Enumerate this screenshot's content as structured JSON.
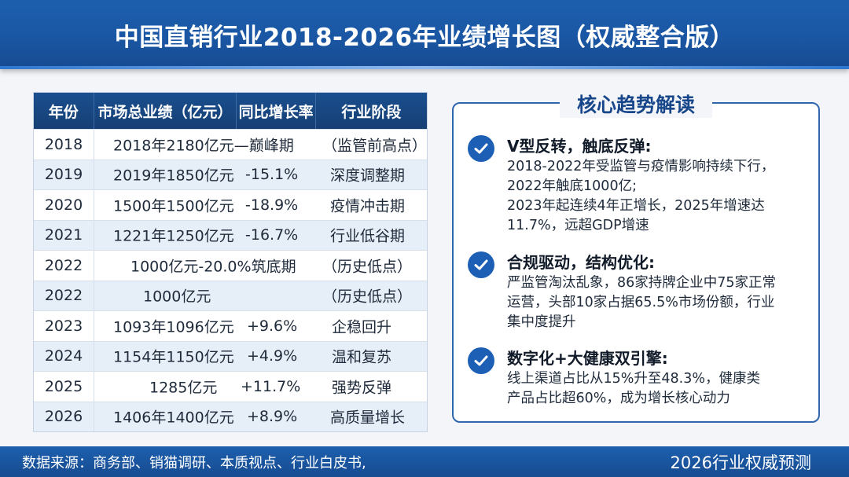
{
  "title": "中国直销行业2018-2026年业绩增长图（权威整合版）",
  "table": {
    "headers": [
      "年份",
      "市场总业绩（亿元）",
      "同比增长率",
      "行业阶段"
    ],
    "rows": [
      {
        "year": "2018",
        "segments": [
          "2018年2180亿元—巅峰期",
          "（监管前高点）"
        ]
      },
      {
        "year": "2019",
        "segments": [
          "2019年1850亿元",
          "-15.1%",
          "深度调整期"
        ]
      },
      {
        "year": "2020",
        "segments": [
          "1500年1500亿元",
          "-18.9%",
          "疫情冲击期"
        ]
      },
      {
        "year": "2021",
        "segments": [
          "1221年1250亿元",
          "-16.7%",
          "行业低谷期"
        ]
      },
      {
        "year": "2022",
        "segments": [
          "1000亿元-20.0%筑底期",
          "（历史低点）"
        ]
      },
      {
        "year": "2022",
        "segments": [
          "1000亿元",
          "（历史低点）"
        ]
      },
      {
        "year": "2023",
        "segments": [
          "1093年1096亿元",
          "+9.6%",
          "企稳回升"
        ]
      },
      {
        "year": "2024",
        "segments": [
          "1154年1150亿元",
          "+4.9%",
          "温和复苏"
        ]
      },
      {
        "year": "2025",
        "segments": [
          "1285亿元",
          "+11.7%",
          "强势反弹"
        ]
      },
      {
        "year": "2026",
        "segments": [
          "1406年1400亿元",
          "+8.9%",
          "高质量增长"
        ]
      }
    ]
  },
  "panel": {
    "title": "核心趋势解读",
    "items": [
      {
        "heading": "V型反转，触底反弹:",
        "lines": [
          "2018-2022年受监管与疫情影响持续下行，",
          "2022年触底1000亿;",
          "2023年起连续4年正增长，2025年增速达",
          "11.7%，远超GDP增速"
        ]
      },
      {
        "heading": "合规驱动，结构优化:",
        "lines": [
          "严监管淘汰乱象，86家持牌企业中75家正常",
          "运营，头部10家占据65.5%市场份额，行业",
          "集中度提升"
        ]
      },
      {
        "heading": "数字化+大健康双引擎:",
        "lines": [
          "线上渠道占比从15%升至48.3%，健康类",
          "产品占比超60%，成为增长核心动力"
        ]
      }
    ]
  },
  "footer": {
    "source": "数据来源：商务部、销猫调研、本质视点、行业白皮书,",
    "forecast": "2026行业权威预测"
  },
  "colors": {
    "header": "#1a56a3",
    "table_head": "#173f74",
    "accent": "#1d5fb5"
  }
}
